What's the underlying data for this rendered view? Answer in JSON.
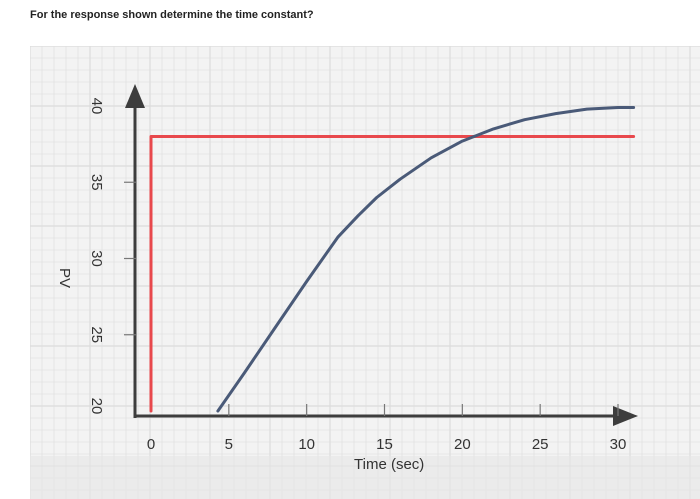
{
  "question": "For the response shown determine the time constant?",
  "chart_data": {
    "type": "line",
    "xlabel": "Time (sec)",
    "ylabel": "PV",
    "x_ticks": [
      "0",
      "5",
      "10",
      "15",
      "20",
      "25",
      "30"
    ],
    "y_ticks": [
      "20",
      "25",
      "30",
      "35",
      "40"
    ],
    "xlim": [
      0,
      32
    ],
    "ylim": [
      20,
      41
    ],
    "grid": true,
    "series": [
      {
        "color": "#e8484c",
        "x": [
          0,
          0,
          31
        ],
        "y": [
          20,
          38,
          38
        ]
      },
      {
        "color": "#4a5a78",
        "x": [
          4.3,
          6,
          8,
          10,
          12,
          13.3,
          14.5,
          16,
          18,
          20,
          22,
          24,
          26,
          28,
          30,
          31
        ],
        "y": [
          20,
          22.5,
          25.5,
          28.5,
          31.4,
          32.8,
          34.0,
          35.2,
          36.6,
          37.7,
          38.5,
          39.1,
          39.5,
          39.8,
          39.9,
          39.9
        ]
      }
    ],
    "colors": {
      "axis": "#3d3d3d",
      "grid": "#dcdcdc",
      "background": "#f3f3f3"
    }
  }
}
